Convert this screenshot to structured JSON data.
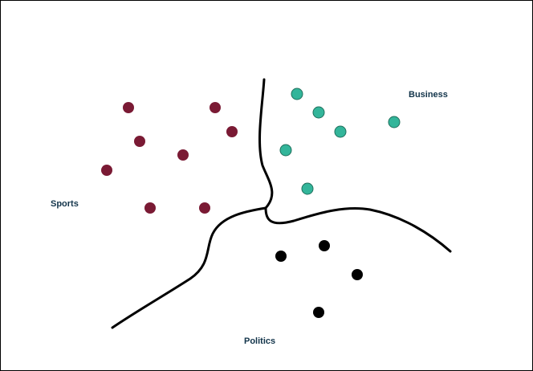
{
  "clusters": {
    "sports": {
      "label": "Sports",
      "color": "#7a1a34"
    },
    "business": {
      "label": "Business",
      "color": "#33b59a"
    },
    "politics": {
      "label": "Politics",
      "color": "#000000"
    }
  },
  "label_color": "#12344a",
  "boundary_color": "#000000"
}
